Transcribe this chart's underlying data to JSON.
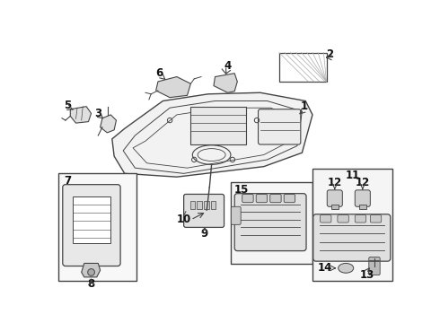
{
  "bg_color": "#f5f5f5",
  "line_color": "#444444",
  "label_color": "#111111",
  "font_size": 8.5,
  "figsize": [
    4.9,
    3.6
  ],
  "dpi": 100,
  "img_b64": ""
}
